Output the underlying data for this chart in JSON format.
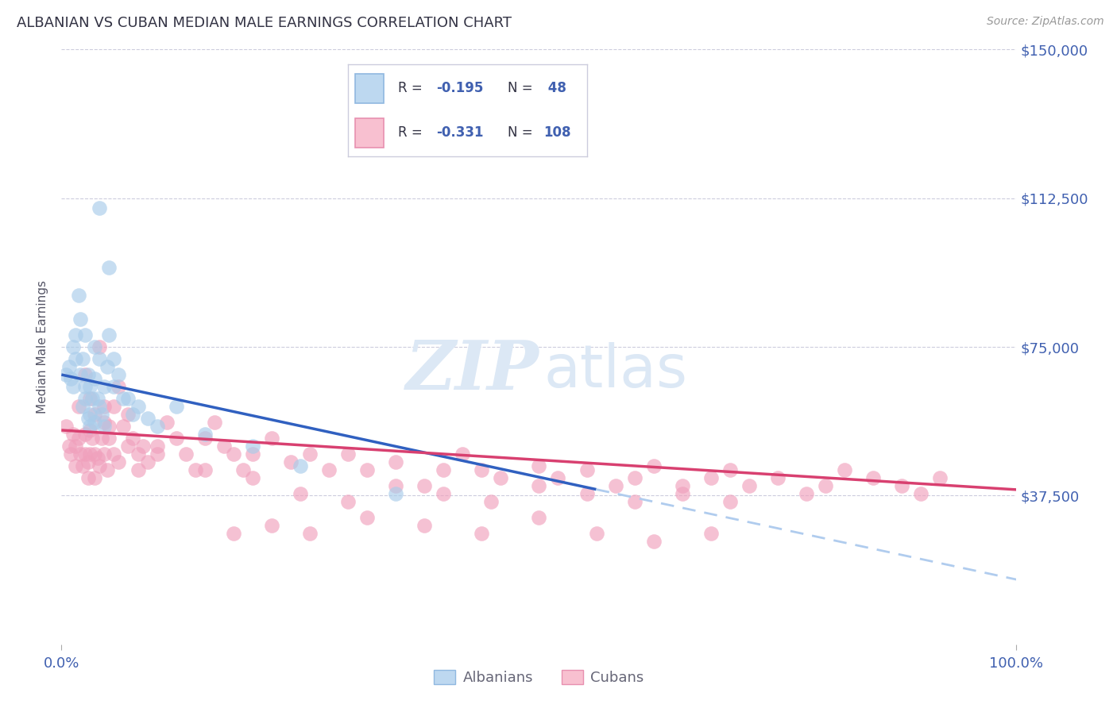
{
  "title": "ALBANIAN VS CUBAN MEDIAN MALE EARNINGS CORRELATION CHART",
  "source": "Source: ZipAtlas.com",
  "ylabel": "Median Male Earnings",
  "yticks": [
    0,
    37500,
    75000,
    112500,
    150000
  ],
  "ytick_labels": [
    "",
    "$37,500",
    "$75,000",
    "$112,500",
    "$150,000"
  ],
  "xmin": 0.0,
  "xmax": 1.0,
  "ymin": 0,
  "ymax": 150000,
  "albanian_color": "#A8CCEA",
  "albanian_edge": "#A8CCEA",
  "cuban_color": "#F0A0BC",
  "cuban_edge": "#F0A0BC",
  "albanian_line_color": "#3060C0",
  "cuban_line_color": "#D84070",
  "dashed_line_color": "#B0CCEE",
  "text_blue": "#4060B0",
  "text_dark": "#333344",
  "legend_border": "#CCCCDD",
  "albanian_x": [
    0.005,
    0.008,
    0.01,
    0.012,
    0.012,
    0.015,
    0.015,
    0.018,
    0.02,
    0.02,
    0.022,
    0.022,
    0.025,
    0.025,
    0.025,
    0.028,
    0.028,
    0.03,
    0.03,
    0.03,
    0.032,
    0.035,
    0.035,
    0.035,
    0.038,
    0.04,
    0.04,
    0.042,
    0.045,
    0.045,
    0.048,
    0.05,
    0.055,
    0.055,
    0.06,
    0.065,
    0.07,
    0.075,
    0.08,
    0.09,
    0.1,
    0.12,
    0.15,
    0.2,
    0.25,
    0.35,
    0.04,
    0.05
  ],
  "albanian_y": [
    68000,
    70000,
    67000,
    75000,
    65000,
    78000,
    72000,
    88000,
    82000,
    68000,
    72000,
    60000,
    78000,
    65000,
    62000,
    68000,
    57000,
    65000,
    58000,
    55000,
    62000,
    75000,
    67000,
    56000,
    62000,
    72000,
    60000,
    58000,
    65000,
    55000,
    70000,
    78000,
    72000,
    65000,
    68000,
    62000,
    62000,
    58000,
    60000,
    57000,
    55000,
    60000,
    53000,
    50000,
    45000,
    38000,
    110000,
    95000
  ],
  "cuban_x": [
    0.005,
    0.008,
    0.01,
    0.012,
    0.015,
    0.015,
    0.018,
    0.018,
    0.02,
    0.022,
    0.025,
    0.025,
    0.028,
    0.028,
    0.03,
    0.03,
    0.032,
    0.035,
    0.035,
    0.038,
    0.04,
    0.042,
    0.045,
    0.045,
    0.048,
    0.05,
    0.055,
    0.055,
    0.06,
    0.065,
    0.07,
    0.075,
    0.08,
    0.085,
    0.09,
    0.1,
    0.11,
    0.12,
    0.13,
    0.14,
    0.15,
    0.16,
    0.17,
    0.18,
    0.19,
    0.2,
    0.22,
    0.24,
    0.26,
    0.28,
    0.3,
    0.32,
    0.35,
    0.38,
    0.4,
    0.42,
    0.44,
    0.46,
    0.5,
    0.52,
    0.55,
    0.58,
    0.6,
    0.62,
    0.65,
    0.68,
    0.7,
    0.72,
    0.75,
    0.78,
    0.8,
    0.82,
    0.85,
    0.88,
    0.9,
    0.92,
    0.025,
    0.03,
    0.035,
    0.04,
    0.045,
    0.05,
    0.06,
    0.07,
    0.08,
    0.1,
    0.15,
    0.2,
    0.25,
    0.3,
    0.35,
    0.4,
    0.45,
    0.5,
    0.55,
    0.6,
    0.65,
    0.7,
    0.18,
    0.22,
    0.26,
    0.32,
    0.38,
    0.44,
    0.5,
    0.56,
    0.62,
    0.68
  ],
  "cuban_y": [
    55000,
    50000,
    48000,
    53000,
    45000,
    50000,
    60000,
    52000,
    48000,
    45000,
    53000,
    48000,
    42000,
    46000,
    48000,
    54000,
    52000,
    48000,
    42000,
    47000,
    45000,
    52000,
    56000,
    48000,
    44000,
    52000,
    60000,
    48000,
    65000,
    55000,
    58000,
    52000,
    48000,
    50000,
    46000,
    50000,
    56000,
    52000,
    48000,
    44000,
    52000,
    56000,
    50000,
    48000,
    44000,
    48000,
    52000,
    46000,
    48000,
    44000,
    48000,
    44000,
    46000,
    40000,
    44000,
    48000,
    44000,
    42000,
    45000,
    42000,
    44000,
    40000,
    42000,
    45000,
    40000,
    42000,
    44000,
    40000,
    42000,
    38000,
    40000,
    44000,
    42000,
    40000,
    38000,
    42000,
    68000,
    62000,
    58000,
    75000,
    60000,
    55000,
    46000,
    50000,
    44000,
    48000,
    44000,
    42000,
    38000,
    36000,
    40000,
    38000,
    36000,
    40000,
    38000,
    36000,
    38000,
    36000,
    28000,
    30000,
    28000,
    32000,
    30000,
    28000,
    32000,
    28000,
    26000,
    28000
  ]
}
